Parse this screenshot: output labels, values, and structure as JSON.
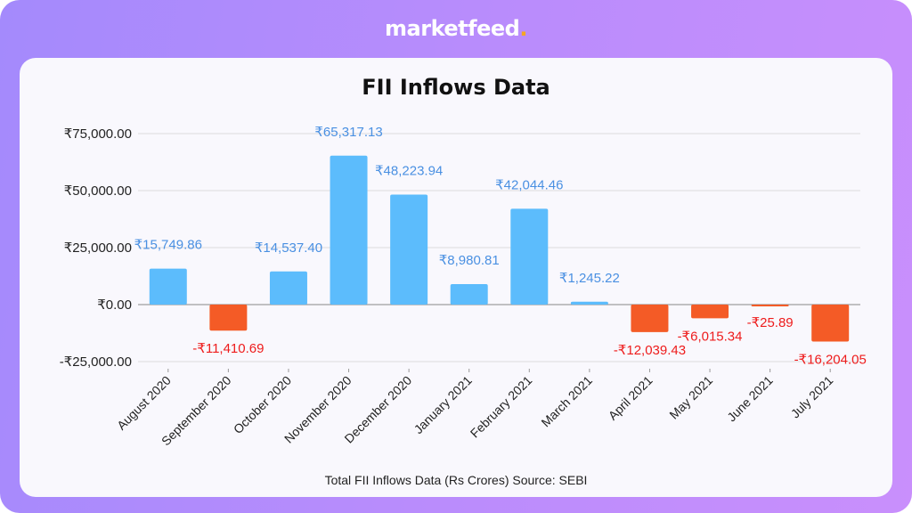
{
  "brand": {
    "name": "marketfeed",
    "dot": "."
  },
  "chart_data": {
    "type": "bar",
    "title": "FII Inflows Data",
    "footer": "Total FII Inflows Data (Rs Crores) Source: SEBI",
    "categories": [
      "August 2020",
      "September 2020",
      "October 2020",
      "November 2020",
      "December 2020",
      "January 2021",
      "February 2021",
      "March 2021",
      "April 2021",
      "May 2021",
      "June 2021",
      "July 2021"
    ],
    "values": [
      15749.86,
      -11410.69,
      14537.4,
      65317.13,
      48223.94,
      8980.81,
      42044.46,
      1245.22,
      -12039.43,
      -6015.34,
      -25.89,
      -16204.05
    ],
    "data_labels": [
      "₹15,749.86",
      "-₹11,410.69",
      "₹14,537.40",
      "₹65,317.13",
      "₹48,223.94",
      "₹8,980.81",
      "₹42,044.46",
      "₹1,245.22",
      "-₹12,039.43",
      "-₹6,015.34",
      "-₹25.89",
      "-₹16,204.05"
    ],
    "yticks": [
      75000,
      50000,
      25000,
      0,
      -25000
    ],
    "ytick_labels": [
      "₹75,000.00",
      "₹50,000.00",
      "₹25,000.00",
      "₹0.00",
      "-₹25,000.00"
    ],
    "ylim": [
      -25000,
      75000
    ],
    "grid": true,
    "colors": {
      "positive": "#5cbcfc",
      "negative": "#f45b26",
      "positive_label": "#4a90e2",
      "negative_label": "#ee1c1c"
    }
  }
}
